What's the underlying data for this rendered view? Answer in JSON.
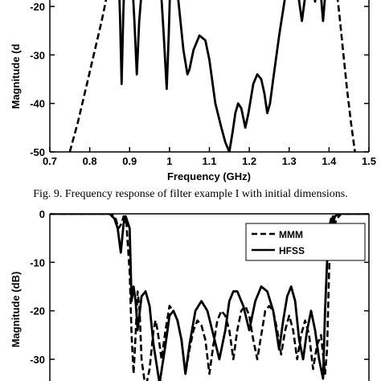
{
  "caption": "Fig. 9. Frequency response of filter example I with initial dimensions.",
  "chart_data": [
    {
      "type": "line",
      "title": "",
      "xlabel": "Frequency (GHz)",
      "ylabel": "Magnitude (d",
      "xlim": [
        0.7,
        1.5
      ],
      "ylim": [
        -50,
        -12
      ],
      "xticks": [
        "0.7",
        "0.8",
        "0.9",
        "1",
        "1.1",
        "1.2",
        "1.3",
        "1.4",
        "1.5"
      ],
      "yticks": [
        "-20",
        "-30",
        "-40",
        "-50"
      ],
      "grid": false,
      "series": [
        {
          "style": "dashed",
          "x": [
            0.75,
            0.77,
            0.79,
            0.81,
            0.83,
            0.845,
            0.855,
            0.862
          ],
          "y": [
            -50,
            -44,
            -37,
            -30,
            -23,
            -17,
            -13,
            -11
          ]
        },
        {
          "style": "solid",
          "x": [
            0.872,
            0.876,
            0.88,
            0.884,
            0.888,
            0.905,
            0.912,
            0.918,
            0.924,
            0.935,
            0.955,
            0.975,
            0.985,
            0.993,
            0.998,
            1.003,
            1.01,
            1.02,
            1.035,
            1.045,
            1.05,
            1.06,
            1.075,
            1.09,
            1.1,
            1.115,
            1.13,
            1.14,
            1.15,
            1.158,
            1.165,
            1.172,
            1.18,
            1.19,
            1.198,
            1.21,
            1.22,
            1.23,
            1.238,
            1.245,
            1.252,
            1.26,
            1.275,
            1.29,
            1.305,
            1.315,
            1.32,
            1.325,
            1.332,
            1.34,
            1.35,
            1.36,
            1.365,
            1.37,
            1.373,
            1.376,
            1.38,
            1.385,
            1.39,
            1.394,
            1.398
          ],
          "y": [
            -12,
            -22,
            -36,
            -22,
            -12,
            -12,
            -23,
            -34,
            -23,
            -12,
            -12,
            -12,
            -25,
            -37,
            -26,
            -12,
            -12,
            -17,
            -29,
            -34,
            -33,
            -29,
            -26,
            -27,
            -31,
            -40,
            -45,
            -48,
            -50,
            -46,
            -42,
            -40,
            -41,
            -45,
            -42,
            -36,
            -34,
            -35,
            -38,
            -42,
            -40,
            -35,
            -26,
            -18,
            -14,
            -13,
            -15,
            -19,
            -23,
            -18,
            -14,
            -16,
            -19,
            -15,
            -12,
            -12,
            -18,
            -23,
            -18,
            -14,
            -12
          ]
        },
        {
          "style": "dashed",
          "x": [
            1.405,
            1.415,
            1.425,
            1.435,
            1.445,
            1.455,
            1.465
          ],
          "y": [
            -12,
            -14,
            -21,
            -29,
            -37,
            -44,
            -50
          ]
        }
      ]
    },
    {
      "type": "line",
      "title": "",
      "xlabel": "",
      "ylabel": "Magnitude (dB)",
      "xlim": [
        0.7,
        1.5
      ],
      "ylim": [
        -36,
        0
      ],
      "yticks": [
        "0",
        "-10",
        "-20",
        "-30"
      ],
      "grid": false,
      "legend_position": "top-right",
      "series": [
        {
          "name": "MMM",
          "style": "dashed",
          "x": [
            0.7,
            0.855,
            0.865,
            0.872,
            0.88,
            0.885,
            0.892,
            0.9,
            0.905,
            0.91,
            0.915,
            0.92,
            0.925,
            0.93,
            0.94,
            0.95,
            0.96,
            0.965,
            0.97,
            0.98,
            0.99,
            1.0,
            1.01,
            1.02,
            1.03,
            1.04,
            1.05,
            1.06,
            1.07,
            1.08,
            1.09,
            1.1,
            1.11,
            1.12,
            1.13,
            1.14,
            1.15,
            1.16,
            1.17,
            1.18,
            1.19,
            1.2,
            1.21,
            1.22,
            1.23,
            1.24,
            1.25,
            1.26,
            1.27,
            1.28,
            1.29,
            1.3,
            1.31,
            1.32,
            1.33,
            1.34,
            1.35,
            1.36,
            1.37,
            1.38,
            1.39,
            1.395,
            1.4,
            1.405,
            1.41,
            1.415,
            1.42,
            1.43,
            1.5
          ],
          "y": [
            0,
            0,
            -1,
            -3,
            -2,
            -0.5,
            -2,
            -12,
            -25,
            -33,
            -25,
            -16,
            -20,
            -30,
            -36,
            -32,
            -24,
            -22,
            -24,
            -30,
            -24,
            -19,
            -20,
            -22,
            -26,
            -33,
            -28,
            -24,
            -22,
            -23,
            -26,
            -33,
            -27,
            -22,
            -20,
            -21,
            -24,
            -30,
            -24,
            -20,
            -19,
            -21,
            -26,
            -30,
            -25,
            -20,
            -19,
            -20,
            -24,
            -29,
            -24,
            -21,
            -24,
            -30,
            -25,
            -22,
            -25,
            -32,
            -27,
            -25,
            -33,
            -28,
            -12,
            -2,
            -0.5,
            -2,
            -1,
            0,
            0
          ]
        },
        {
          "name": "HFSS",
          "style": "solid",
          "x": [
            0.7,
            0.85,
            0.862,
            0.87,
            0.878,
            0.885,
            0.89,
            0.9,
            0.905,
            0.91,
            0.915,
            0.92,
            0.93,
            0.94,
            0.95,
            0.96,
            0.975,
            0.99,
            1.0,
            1.01,
            1.02,
            1.03,
            1.04,
            1.05,
            1.065,
            1.08,
            1.095,
            1.11,
            1.125,
            1.14,
            1.15,
            1.16,
            1.17,
            1.185,
            1.2,
            1.215,
            1.23,
            1.245,
            1.26,
            1.275,
            1.285,
            1.295,
            1.305,
            1.315,
            1.325,
            1.335,
            1.345,
            1.355,
            1.365,
            1.375,
            1.385,
            1.39,
            1.395,
            1.4,
            1.405,
            1.41,
            1.415,
            1.425,
            1.5
          ],
          "y": [
            0,
            0,
            -1,
            -3,
            -8,
            -2,
            -0.5,
            -3,
            -18,
            -15,
            -18,
            -24,
            -17,
            -16,
            -19,
            -27,
            -35,
            -27,
            -21,
            -20,
            -22,
            -26,
            -33,
            -27,
            -20,
            -18,
            -20,
            -25,
            -30,
            -24,
            -18,
            -16,
            -16,
            -19,
            -24,
            -18,
            -15,
            -16,
            -20,
            -28,
            -22,
            -17,
            -15,
            -18,
            -26,
            -30,
            -24,
            -20,
            -24,
            -30,
            -34,
            -20,
            -10,
            -3,
            -1,
            -2,
            -0.5,
            0,
            0
          ]
        }
      ]
    }
  ]
}
